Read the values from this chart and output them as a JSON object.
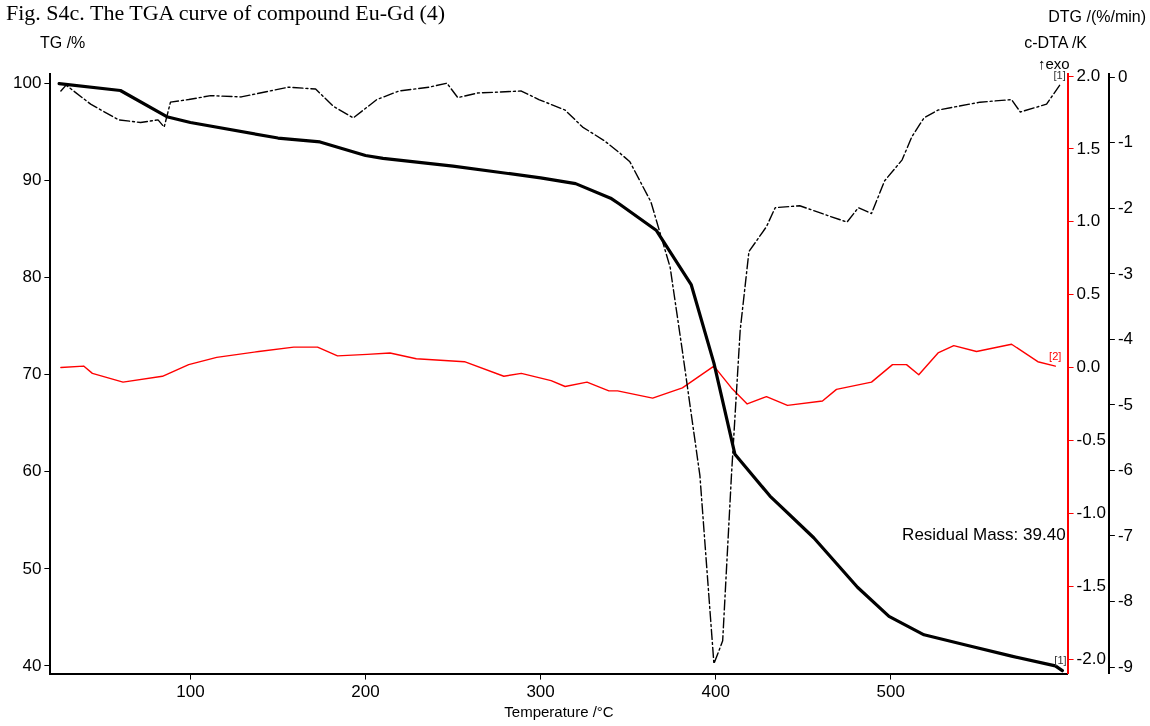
{
  "chart_data": {
    "type": "line",
    "title": "Fig. S4c. The TGA curve of compound Eu-Gd (4)",
    "xlabel": "Temperature /°C",
    "ylabel": "TG /%",
    "y2label": "c-DTA /K",
    "y3label": "DTG /(%/min)",
    "xlim": [
      20,
      601
    ],
    "xticks": [
      100,
      200,
      300,
      400,
      500
    ],
    "ylim": [
      39.2,
      101
    ],
    "yticks": [
      40,
      50,
      60,
      70,
      80,
      90,
      100
    ],
    "y2lim": [
      -2.1,
      2.014
    ],
    "y2ticks": [
      {
        "value": -2,
        "label": "-2.0"
      },
      {
        "value": -1.5,
        "label": "-1.5"
      },
      {
        "value": -1,
        "label": "-1.0"
      },
      {
        "value": -0.5,
        "label": "-0.5"
      },
      {
        "value": 0,
        "label": "0.0"
      },
      {
        "value": 0.5,
        "label": "0.5"
      },
      {
        "value": 1,
        "label": "1.0"
      },
      {
        "value": 1.5,
        "label": "1.5"
      },
      {
        "value": 2,
        "label": "2.0"
      }
    ],
    "y3lim": [
      -9.1,
      0.05
    ],
    "y3ticks": [
      -9,
      -8,
      -7,
      -6,
      -5,
      -4,
      -3,
      -2,
      -1,
      0
    ],
    "grid": false,
    "legend": false,
    "series": [
      {
        "color": "#000000",
        "line_style": "solid",
        "x": [
          25,
          60,
          86.5,
          100,
          150,
          174,
          200,
          210,
          250,
          300,
          320,
          340,
          345,
          366,
          386,
          399,
          411,
          431,
          456,
          481,
          499,
          519,
          544,
          569,
          594,
          598
        ],
        "values": [
          100,
          99.3,
          96.6,
          96,
          94.4,
          94,
          92.6,
          92.3,
          91.5,
          90.3,
          89.7,
          88.2,
          87.6,
          84.9,
          79.3,
          71.2,
          61.8,
          57.5,
          53.2,
          48.1,
          45.1,
          43.2,
          42.1,
          41,
          40,
          39.5
        ]
      },
      {
        "color": "#000000",
        "line_style": "dashed",
        "axis": "y3",
        "x": [
          26,
          29,
          43,
          59,
          71.5,
          81.5,
          85,
          88.6,
          99,
          111.6,
          129,
          156,
          171.5,
          181.5,
          193,
          206.5,
          219,
          236.5,
          246.5,
          252.7,
          264,
          289,
          299,
          314,
          324,
          336.5,
          345,
          351,
          363,
          374,
          381,
          391,
          399,
          404,
          409,
          414,
          419,
          429,
          434,
          448,
          464,
          475,
          481.5,
          489,
          496.5,
          506.5,
          512,
          519,
          527,
          539,
          551,
          569,
          574,
          589,
          596.5
        ],
        "values": [
          -0.21,
          -0.12,
          -0.41,
          -0.65,
          -0.69,
          -0.65,
          -0.76,
          -0.38,
          -0.34,
          -0.28,
          -0.3,
          -0.15,
          -0.18,
          -0.44,
          -0.62,
          -0.34,
          -0.21,
          -0.15,
          -0.09,
          -0.31,
          -0.24,
          -0.21,
          -0.34,
          -0.5,
          -0.76,
          -0.97,
          -1.15,
          -1.29,
          -1.9,
          -2.9,
          -4.18,
          -6.08,
          -8.95,
          -8.6,
          -6.08,
          -3.86,
          -2.66,
          -2.28,
          -1.99,
          -1.96,
          -2.11,
          -2.21,
          -1.99,
          -2.08,
          -1.58,
          -1.26,
          -0.91,
          -0.62,
          -0.5,
          -0.44,
          -0.38,
          -0.34,
          -0.53,
          -0.41,
          -0.12
        ]
      },
      {
        "color": "#ff0000",
        "line_style": "solid",
        "axis": "y2",
        "x": [
          26,
          39,
          44,
          61.5,
          84,
          99,
          115,
          139,
          159,
          172.6,
          184,
          201,
          214,
          229,
          256.5,
          279,
          289,
          306,
          314,
          326.5,
          339,
          344,
          364,
          381,
          399,
          409,
          418,
          429,
          441,
          461,
          469,
          489,
          501,
          509,
          516,
          527,
          536,
          549,
          569,
          584,
          594
        ],
        "values": [
          0,
          0.01,
          -0.04,
          -0.1,
          -0.06,
          0.02,
          0.07,
          0.11,
          0.14,
          0.14,
          0.08,
          0.09,
          0.1,
          0.06,
          0.04,
          -0.06,
          -0.04,
          -0.09,
          -0.13,
          -0.1,
          -0.16,
          -0.16,
          -0.21,
          -0.14,
          0.01,
          -0.14,
          -0.25,
          -0.2,
          -0.26,
          -0.23,
          -0.15,
          -0.1,
          0.02,
          0.02,
          -0.05,
          0.1,
          0.15,
          0.11,
          0.16,
          0.04,
          0.01
        ]
      }
    ],
    "annotations": [
      "↑exo",
      "[1]",
      "[2]",
      "[1]",
      "Residual Mass: 39.40"
    ]
  }
}
